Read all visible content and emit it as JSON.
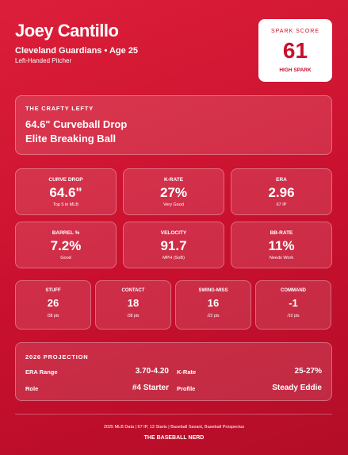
{
  "header": {
    "name": "Joey Cantillo",
    "team": "Cleveland Guardians • Age 25",
    "role": "Left-Handed Pitcher"
  },
  "score": {
    "label": "SPARK SCORE",
    "value": "61",
    "tier": "HIGH SPARK"
  },
  "headline": {
    "kicker": "THE CRAFTY LEFTY",
    "lines": [
      "64.6\" Curveball Drop",
      "Elite Breaking Ball"
    ]
  },
  "stats": [
    {
      "label": "CURVE DROP",
      "value": "64.6\"",
      "note": "Top 5 in MLB"
    },
    {
      "label": "K-RATE",
      "value": "27%",
      "note": "Very Good"
    },
    {
      "label": "ERA",
      "value": "2.96",
      "note": "67 IP"
    },
    {
      "label": "BARREL %",
      "value": "7.2%",
      "note": "Good"
    },
    {
      "label": "VELOCITY",
      "value": "91.7",
      "note": "MPH (SoB)"
    },
    {
      "label": "BB-RATE",
      "value": "11%",
      "note": "Needs Work"
    }
  ],
  "scores": [
    {
      "label": "STUFF",
      "value": "26",
      "note": "/38 pts"
    },
    {
      "label": "CONTACT",
      "value": "18",
      "note": "/38 pts"
    },
    {
      "label": "SWING-MISS",
      "value": "16",
      "note": "/22 pts"
    },
    {
      "label": "COMMAND",
      "value": "-1",
      "note": "/10 pts"
    }
  ],
  "projection": {
    "title": "2026 PROJECTION",
    "rows": [
      [
        "ERA Range",
        "3.70-4.20",
        "K-Rate",
        "25-27%"
      ],
      [
        "Role",
        "#4 Starter",
        "Profile",
        "Steady Eddie"
      ]
    ]
  },
  "footer": {
    "source": "2025 MLB Data | 67 IP, 13 Starts | Baseball Savant, Baseball Prospectus",
    "brand": "THE BASEBALL NERD"
  }
}
